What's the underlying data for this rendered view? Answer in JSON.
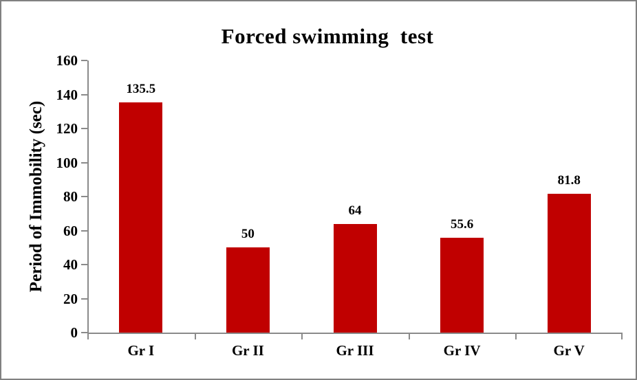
{
  "window": {
    "background_color": "#ffffff",
    "frame_border_color": "#808080"
  },
  "chart_data": {
    "type": "bar",
    "title": "Forced swimming  test",
    "xlabel": "",
    "ylabel": "Period of Immobility (sec)",
    "categories": [
      "Gr I",
      "Gr II",
      "Gr III",
      "Gr IV",
      "Gr V"
    ],
    "values": [
      135.5,
      50,
      64,
      55.6,
      81.8
    ],
    "value_labels": [
      "135.5",
      "50",
      "64",
      "55.6",
      "81.8"
    ],
    "ylim": [
      0,
      160
    ],
    "yticks": [
      0,
      20,
      40,
      60,
      80,
      100,
      120,
      140,
      160
    ],
    "grid": false,
    "legend": false,
    "bar_color": "#C00000",
    "axis_color": "#8a8a8a",
    "text_color": "#000000"
  }
}
